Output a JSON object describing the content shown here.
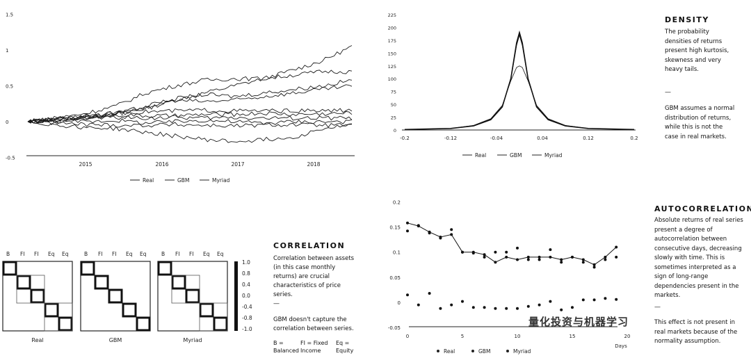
{
  "watermark": "量化投资与机器学习",
  "density": {
    "title": "DENSITY",
    "text1": "The probability densities of returns present high kurtosis, skewness and very heavy tails.",
    "divider": "—",
    "text2": "GBM assumes a normal distribution of returns, while this is not the case in real markets."
  },
  "autocorr": {
    "title": "AUTOCORRELATION",
    "text1": "Absolute returns of real series present a degree of autocorrelation between consecutive days, decreasing slowly with time. This is sometimes interpreted as a sign of long-range dependencies present in the markets.",
    "divider": "—",
    "text2": "This effect is not present in real markets because of the normality assumption."
  },
  "correlation": {
    "title": "CORRELATION",
    "text1": "Correlation between assets (in this case monthly returns) are crucial characteristics of price series.",
    "divider": "—",
    "text2": "GBM doesn't capture the correlation between series.",
    "key_b": "B = Balanced",
    "key_fi": "FI = Fixed Income",
    "key_eq": "Eq = Equity"
  },
  "chart_data": [
    {
      "type": "line",
      "title": "",
      "xlabel": "",
      "ylabel": "",
      "x_ticks": [
        "2015",
        "2016",
        "2017",
        "2018"
      ],
      "y_ticks": [
        "1.5",
        "1",
        "0.5",
        "0",
        "-0.5"
      ],
      "ylim": [
        -0.5,
        1.5
      ],
      "legend": [
        "Real",
        "GBM",
        "Myriad"
      ],
      "series": [
        {
          "name": "path-1",
          "values": [
            0,
            0.04,
            0.08,
            0.12,
            0.18,
            0.3,
            0.4,
            0.5,
            0.6,
            0.72,
            0.85,
            1.05
          ]
        },
        {
          "name": "path-2",
          "values": [
            0,
            0.05,
            0.12,
            0.22,
            0.4,
            0.5,
            0.58,
            0.6,
            0.6,
            0.65,
            0.7,
            0.7
          ]
        },
        {
          "name": "path-3",
          "values": [
            0,
            0.03,
            0.06,
            0.1,
            0.2,
            0.32,
            0.38,
            0.35,
            0.4,
            0.45,
            0.5,
            0.58
          ]
        },
        {
          "name": "path-4",
          "values": [
            0,
            0.02,
            0.05,
            0.1,
            0.22,
            0.3,
            0.28,
            0.3,
            0.35,
            0.4,
            0.45,
            0.5
          ]
        },
        {
          "name": "path-5",
          "values": [
            0,
            0.02,
            0.08,
            0.12,
            0.14,
            0.15,
            0.16,
            0.15,
            0.15,
            0.15,
            0.15,
            0.16
          ]
        },
        {
          "name": "path-6",
          "values": [
            0,
            0.05,
            0.08,
            0.1,
            0.08,
            0.08,
            0.1,
            0.1,
            0.12,
            0.1,
            0.11,
            0.12
          ]
        },
        {
          "name": "path-7",
          "values": [
            0,
            0.02,
            0.05,
            0.06,
            0.05,
            0.06,
            0.05,
            0.06,
            0.05,
            0.05,
            0.05,
            0.05
          ]
        },
        {
          "name": "path-8",
          "values": [
            0,
            0.01,
            0.0,
            0.02,
            -0.02,
            0.0,
            0.02,
            0.0,
            -0.02,
            0.0,
            0.0,
            0.0
          ]
        },
        {
          "name": "path-9",
          "values": [
            0,
            -0.02,
            -0.04,
            -0.05,
            -0.05,
            -0.04,
            -0.05,
            -0.06,
            -0.05,
            -0.04,
            -0.05,
            -0.05
          ]
        },
        {
          "name": "path-10",
          "values": [
            0,
            -0.05,
            -0.08,
            -0.1,
            -0.15,
            -0.2,
            -0.25,
            -0.28,
            -0.25,
            -0.22,
            -0.1,
            -0.05
          ]
        }
      ]
    },
    {
      "type": "line",
      "title": "DENSITY",
      "x_ticks": [
        "-0.2",
        "-0.12",
        "-0.04",
        "0.04",
        "0.12",
        "0.2"
      ],
      "y_ticks": [
        "225",
        "200",
        "175",
        "150",
        "125",
        "100",
        "75",
        "50",
        "25",
        "0"
      ],
      "xlim": [
        -0.2,
        0.2
      ],
      "ylim": [
        0,
        225
      ],
      "legend": [
        "Real",
        "GBM",
        "Myriad"
      ],
      "series": [
        {
          "name": "Real",
          "x": [
            -0.2,
            -0.12,
            -0.08,
            -0.05,
            -0.03,
            -0.015,
            -0.005,
            0.0,
            0.005,
            0.015,
            0.03,
            0.05,
            0.08,
            0.12,
            0.2
          ],
          "y": [
            1,
            3,
            8,
            20,
            45,
            100,
            170,
            190,
            170,
            100,
            45,
            20,
            8,
            3,
            1
          ]
        },
        {
          "name": "GBM",
          "x": [
            -0.2,
            -0.12,
            -0.08,
            -0.05,
            -0.03,
            -0.015,
            -0.005,
            0.0,
            0.005,
            0.015,
            0.03,
            0.05,
            0.08,
            0.12,
            0.2
          ],
          "y": [
            1,
            3,
            9,
            22,
            48,
            96,
            122,
            125,
            122,
            96,
            48,
            22,
            9,
            3,
            1
          ]
        },
        {
          "name": "Myriad",
          "x": [
            -0.2,
            -0.12,
            -0.08,
            -0.05,
            -0.03,
            -0.015,
            -0.005,
            0.0,
            0.005,
            0.015,
            0.03,
            0.05,
            0.08,
            0.12,
            0.2
          ],
          "y": [
            1,
            3,
            8,
            21,
            46,
            98,
            165,
            185,
            165,
            98,
            46,
            21,
            8,
            3,
            1
          ]
        }
      ]
    },
    {
      "type": "scatter",
      "title": "AUTOCORRELATION",
      "xlabel": "Days",
      "x_ticks": [
        "0",
        "5",
        "10",
        "15",
        "20"
      ],
      "y_ticks": [
        "0.2",
        "0.15",
        "0.1",
        "0.05",
        "0",
        "-0.05"
      ],
      "xlim": [
        0,
        20
      ],
      "ylim": [
        -0.05,
        0.2
      ],
      "legend": [
        "Real",
        "GBM",
        "Myriad"
      ],
      "series": [
        {
          "name": "Real",
          "x": [
            0,
            1,
            2,
            3,
            4,
            5,
            6,
            7,
            8,
            9,
            10,
            11,
            12,
            13,
            14,
            15,
            16,
            17,
            18,
            19
          ],
          "y": [
            0.158,
            0.152,
            0.14,
            0.13,
            0.135,
            0.1,
            0.1,
            0.095,
            0.08,
            0.09,
            0.085,
            0.09,
            0.09,
            0.09,
            0.085,
            0.09,
            0.085,
            0.075,
            0.09,
            0.11
          ]
        },
        {
          "name": "GBM",
          "x": [
            0,
            1,
            2,
            3,
            4,
            5,
            6,
            7,
            8,
            9,
            10,
            11,
            12,
            13,
            14,
            15,
            16,
            17,
            18,
            19
          ],
          "y": [
            0.015,
            -0.005,
            0.018,
            -0.012,
            -0.005,
            0.002,
            -0.01,
            -0.01,
            -0.012,
            -0.012,
            -0.012,
            -0.008,
            -0.005,
            0.002,
            -0.015,
            -0.01,
            0.005,
            0.005,
            0.008,
            0.006
          ]
        },
        {
          "name": "Myriad",
          "x": [
            0,
            1,
            2,
            3,
            4,
            5,
            6,
            7,
            8,
            9,
            10,
            11,
            12,
            13,
            14,
            15,
            16,
            17,
            18,
            19
          ],
          "y": [
            0.142,
            0.153,
            0.138,
            0.128,
            0.145,
            0.1,
            0.098,
            0.09,
            0.1,
            0.1,
            0.108,
            0.085,
            0.085,
            0.105,
            0.08,
            0.09,
            0.08,
            0.07,
            0.085,
            0.09
          ]
        }
      ]
    },
    {
      "type": "heatmap",
      "title": "CORRELATION",
      "matrices": [
        "Real",
        "GBM",
        "Myriad"
      ],
      "labels": [
        "B",
        "FI",
        "FI",
        "Eq",
        "Eq"
      ],
      "colorbar_ticks": [
        "1.0",
        "0.8",
        "0.4",
        "0.0",
        "-0.4",
        "-0.8",
        "-1.0"
      ]
    }
  ]
}
